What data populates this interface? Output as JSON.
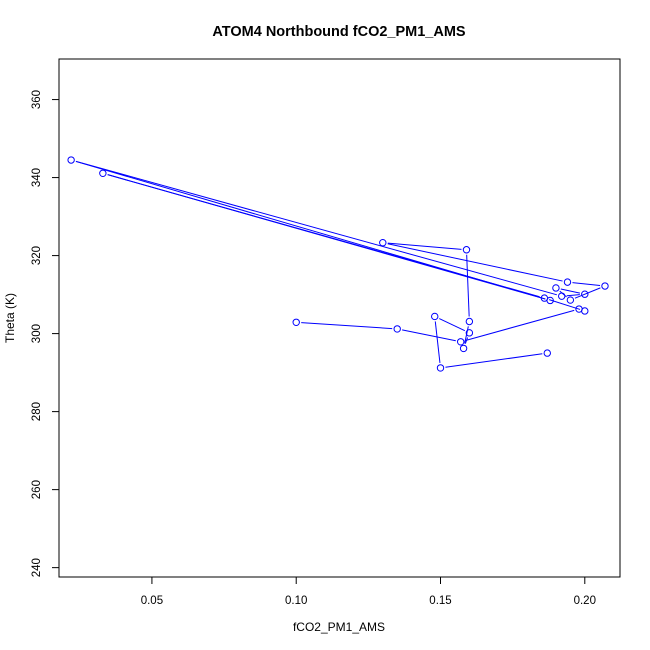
{
  "chart_data": {
    "type": "line",
    "title": "ATOM4 Northbound fCO2_PM1_AMS",
    "xlabel": "fCO2_PM1_AMS",
    "ylabel": "Theta (K)",
    "xlim": [
      0.0178,
      0.2122
    ],
    "ylim": [
      237.6,
      370.4
    ],
    "x_ticks": [
      0.05,
      0.1,
      0.15,
      0.2
    ],
    "x_tick_labels": [
      "0.05",
      "0.10",
      "0.15",
      "0.20"
    ],
    "y_ticks": [
      240,
      260,
      280,
      300,
      320,
      340,
      360
    ],
    "y_tick_labels": [
      "240",
      "260",
      "280",
      "300",
      "320",
      "340",
      "360"
    ],
    "grid": false,
    "legend": "none",
    "series": [
      {
        "marker": "open-circle",
        "color": "#0000ff",
        "points": [
          {
            "x": 0.187,
            "y": 295.0
          },
          {
            "x": 0.15,
            "y": 291.2
          },
          {
            "x": 0.148,
            "y": 304.4
          },
          {
            "x": 0.16,
            "y": 300.2
          },
          {
            "x": 0.158,
            "y": 296.2
          },
          {
            "x": 0.16,
            "y": 303.1
          },
          {
            "x": 0.159,
            "y": 321.5
          },
          {
            "x": 0.13,
            "y": 323.3
          },
          {
            "x": 0.194,
            "y": 313.2
          },
          {
            "x": 0.207,
            "y": 312.2
          },
          {
            "x": 0.195,
            "y": 308.6
          },
          {
            "x": 0.19,
            "y": 311.7
          },
          {
            "x": 0.2,
            "y": 310.1
          },
          {
            "x": 0.192,
            "y": 309.6
          },
          {
            "x": 0.022,
            "y": 344.5
          },
          {
            "x": 0.188,
            "y": 308.5
          },
          {
            "x": 0.033,
            "y": 341.1
          },
          {
            "x": 0.186,
            "y": 309.1
          },
          {
            "x": 0.2,
            "y": 305.8
          },
          {
            "x": 0.198,
            "y": 306.3
          },
          {
            "x": 0.157,
            "y": 297.9
          },
          {
            "x": 0.135,
            "y": 301.2
          },
          {
            "x": 0.1,
            "y": 302.9
          }
        ]
      }
    ]
  }
}
